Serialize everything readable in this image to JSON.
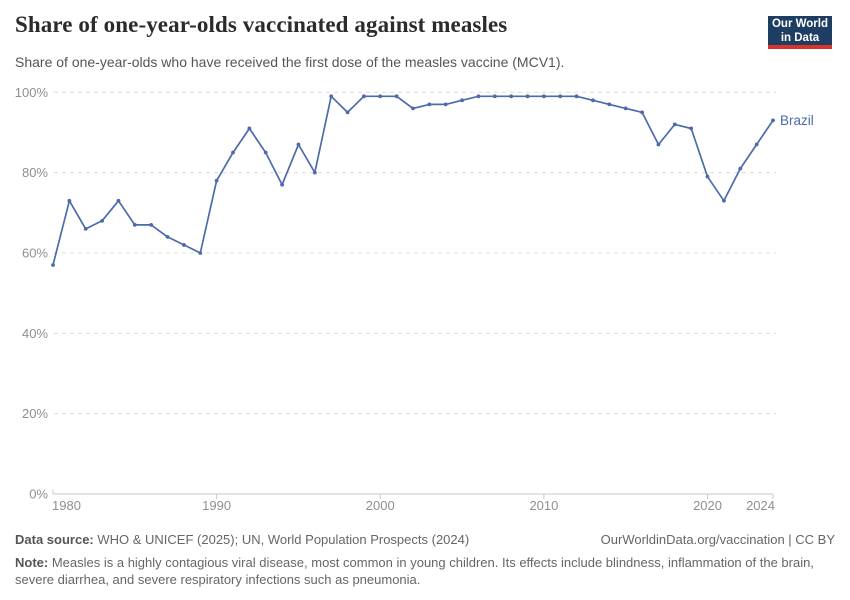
{
  "header": {
    "title": "Share of one-year-olds vaccinated against measles",
    "subtitle": "Share of one-year-olds who have received the first dose of the measles vaccine (MCV1).",
    "logo": {
      "line1": "Our World",
      "line2": "in Data",
      "bg_color": "#1d3d63",
      "accent_color": "#d7342c"
    }
  },
  "chart_data": {
    "type": "line",
    "title": "Share of one-year-olds vaccinated against measles",
    "subtitle": "Share of one-year-olds who have received the first dose of the measles vaccine (MCV1).",
    "xlim": [
      1980,
      2024
    ],
    "ylim": [
      0,
      100
    ],
    "x_ticks": [
      1980,
      1990,
      2000,
      2010,
      2020,
      2024
    ],
    "y_ticks": [
      0,
      20,
      40,
      60,
      80,
      100
    ],
    "y_tick_suffix": "%",
    "grid": "horizontal-dashed",
    "legend_position": "end-of-line-label",
    "series": [
      {
        "name": "Brazil",
        "color": "#4c6ba9",
        "x": [
          1980,
          1981,
          1982,
          1983,
          1984,
          1985,
          1986,
          1987,
          1988,
          1989,
          1990,
          1991,
          1992,
          1993,
          1994,
          1995,
          1996,
          1997,
          1998,
          1999,
          2000,
          2001,
          2002,
          2003,
          2004,
          2005,
          2006,
          2007,
          2008,
          2009,
          2010,
          2011,
          2012,
          2013,
          2014,
          2015,
          2016,
          2017,
          2018,
          2019,
          2020,
          2021,
          2022,
          2023,
          2024
        ],
        "values": [
          57,
          73,
          66,
          68,
          73,
          67,
          67,
          64,
          62,
          60,
          78,
          85,
          91,
          85,
          77,
          87,
          80,
          99,
          95,
          99,
          99,
          99,
          96,
          97,
          97,
          98,
          99,
          99,
          99,
          99,
          99,
          99,
          99,
          98,
          97,
          96,
          95,
          87,
          92,
          91,
          79,
          73,
          81,
          87,
          93
        ]
      }
    ],
    "colors": {
      "grid": "#dcdcdc",
      "axis": "#c8c8c8",
      "tick_text": "#8f8f8f"
    }
  },
  "footer": {
    "data_source_label": "Data source:",
    "data_source_text": " WHO & UNICEF (2025); UN, World Population Prospects (2024)",
    "attribution": "OurWorldinData.org/vaccination | CC BY",
    "note_label": "Note:",
    "note_text": " Measles is a highly contagious viral disease, most common in young children. Its effects include blindness, inflammation of the brain, severe diarrhea, and severe respiratory infections such as pneumonia."
  }
}
